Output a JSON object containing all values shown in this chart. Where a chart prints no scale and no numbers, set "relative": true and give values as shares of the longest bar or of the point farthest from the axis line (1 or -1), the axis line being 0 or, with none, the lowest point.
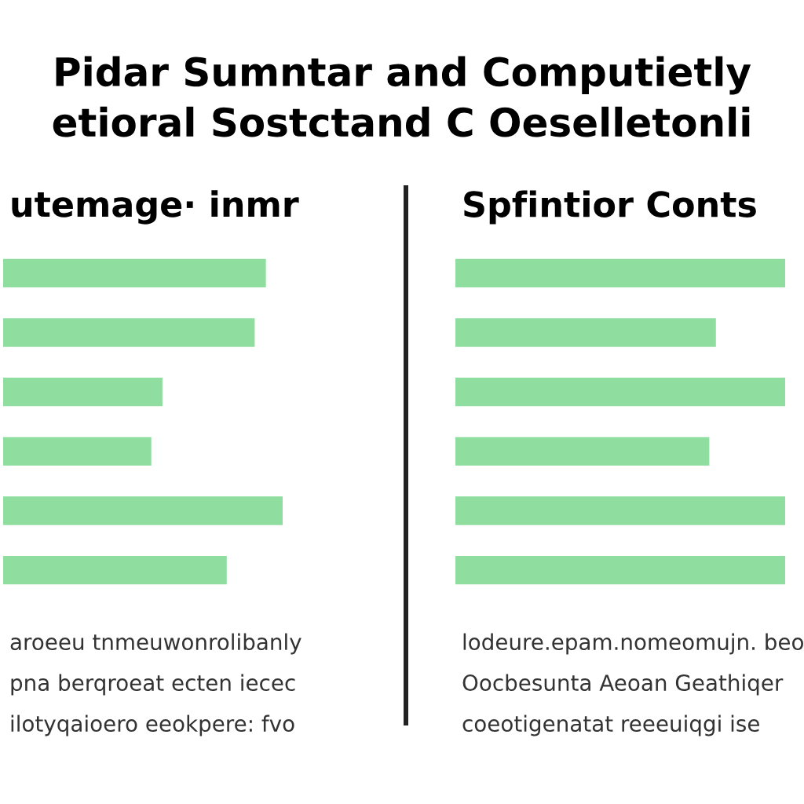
{
  "chart_data": [
    {
      "type": "bar",
      "orientation": "horizontal",
      "relative": true,
      "title": "utemage· inmr",
      "categories": [
        null,
        null,
        null,
        null,
        null,
        null
      ],
      "values": [
        0.94,
        0.9,
        0.57,
        0.53,
        1,
        0.8
      ],
      "color": "#8fdea0",
      "annotations": [
        "Pidar Sumntar and Computietly",
        "etioral Sostctand C Oeselletonli",
        "aroeeu tnmeuwonrolibanly",
        "pna berqroeat ecten iecec",
        "ilotyqaioero eeokpere: fvo"
      ]
    },
    {
      "type": "bar",
      "orientation": "horizontal",
      "relative": true,
      "title": "Spfintior Conts",
      "categories": [
        null,
        null,
        null,
        null,
        null,
        null
      ],
      "values": [
        1,
        0.79,
        1,
        0.77,
        1,
        1
      ],
      "color": "#8fdea0",
      "annotations": [
        "lodeure.epam.nomeomujn. beo",
        "Oocbesunta Aeoan Geathiqer",
        "coeotigenatat reeeuiqgi ise"
      ]
    }
  ]
}
